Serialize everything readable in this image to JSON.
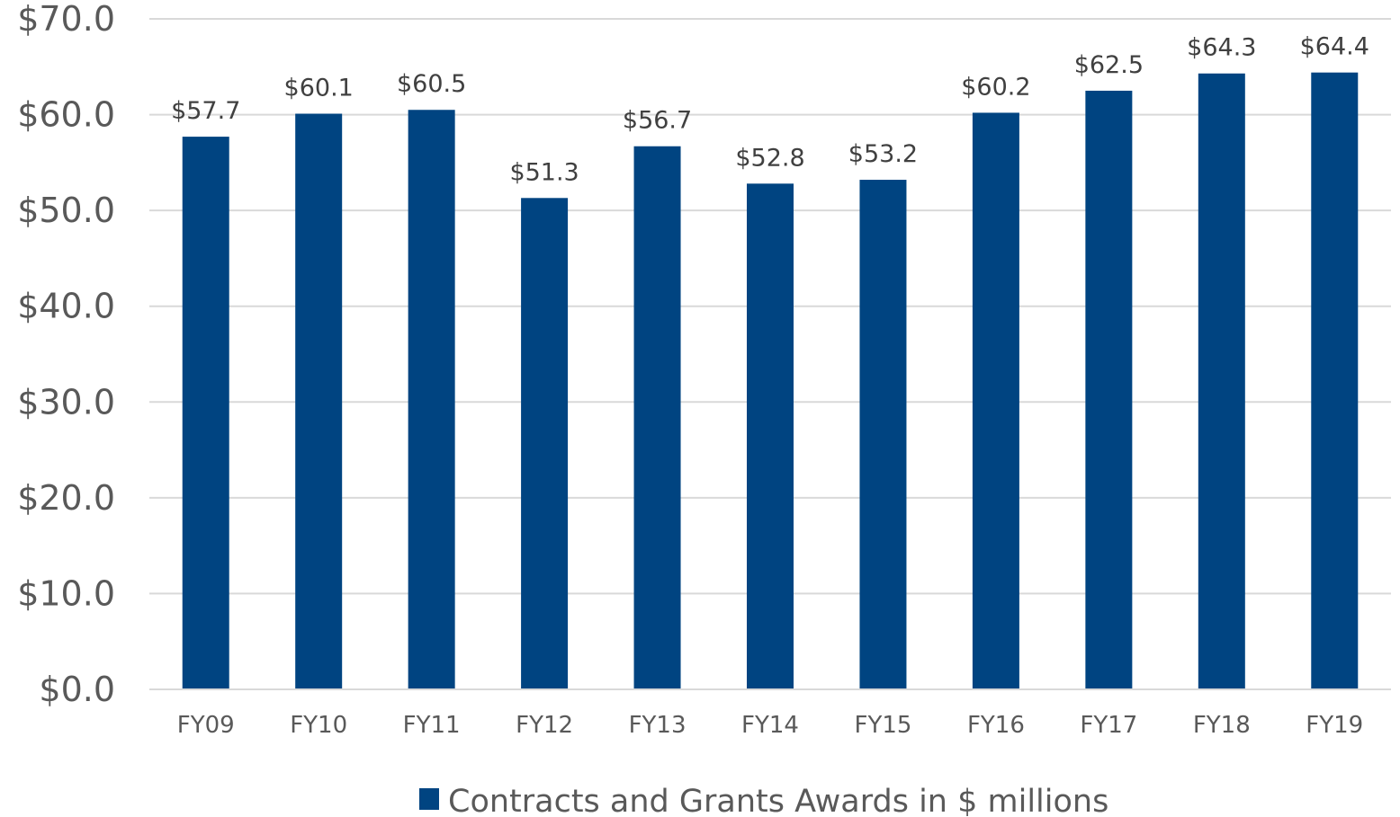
{
  "chart_data": {
    "type": "bar",
    "categories": [
      "FY09",
      "FY10",
      "FY11",
      "FY12",
      "FY13",
      "FY14",
      "FY15",
      "FY16",
      "FY17",
      "FY18",
      "FY19"
    ],
    "series": [
      {
        "name": "Contracts and Grants Awards in $ millions",
        "values": [
          57.7,
          60.1,
          60.5,
          51.3,
          56.7,
          52.8,
          53.2,
          60.2,
          62.5,
          64.3,
          64.4
        ],
        "labels": [
          "$57.7",
          "$60.1",
          "$60.5",
          "$51.3",
          "$56.7",
          "$52.8",
          "$53.2",
          "$60.2",
          "$62.5",
          "$64.3",
          "$64.4"
        ],
        "color": "#004481"
      }
    ],
    "ylim": [
      0,
      70
    ],
    "yticks": [
      0,
      10,
      20,
      30,
      40,
      50,
      60,
      70
    ],
    "ytick_labels": [
      "$0.0",
      "$10.0",
      "$20.0",
      "$30.0",
      "$40.0",
      "$50.0",
      "$60.0",
      "$70.0"
    ],
    "grid": true,
    "legend_position": "bottom",
    "gridline_color": "#d9d9d9"
  }
}
